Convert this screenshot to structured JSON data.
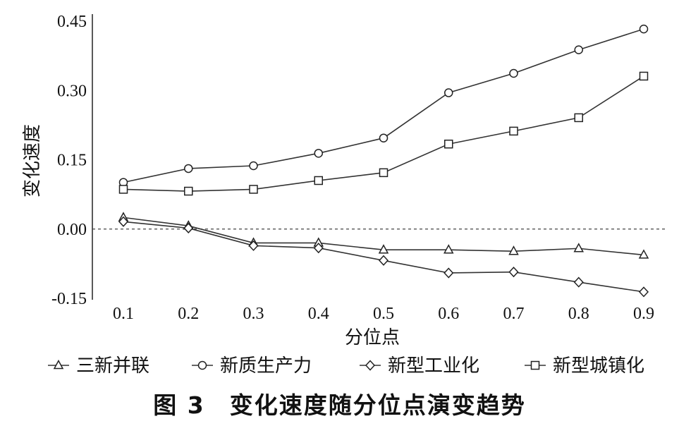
{
  "chart_data": {
    "type": "line",
    "x": [
      0.1,
      0.2,
      0.3,
      0.4,
      0.5,
      0.6,
      0.7,
      0.8,
      0.9
    ],
    "x_tick_labels": [
      "0.1",
      "0.2",
      "0.3",
      "0.4",
      "0.5",
      "0.6",
      "0.7",
      "0.8",
      "0.9"
    ],
    "y_tick_values": [
      -0.15,
      0.0,
      0.15,
      0.3,
      0.45
    ],
    "y_tick_labels": [
      "-0.15",
      "0.00",
      "0.15",
      "0.30",
      "0.45"
    ],
    "xlabel": "分位点",
    "ylabel": "变化速度",
    "ylim": [
      -0.15,
      0.45
    ],
    "xlim": [
      0.1,
      0.9
    ],
    "grid": false,
    "zero_line": "dashed",
    "legend_position": "bottom",
    "caption": "图 3　变化速度随分位点演变趋势",
    "series": [
      {
        "name": "三新并联",
        "marker": "triangle",
        "values": [
          0.025,
          0.007,
          -0.03,
          -0.03,
          -0.045,
          -0.045,
          -0.048,
          -0.042,
          -0.056
        ]
      },
      {
        "name": "新质生产力",
        "marker": "circle",
        "values": [
          0.101,
          0.131,
          0.137,
          0.164,
          0.197,
          0.295,
          0.337,
          0.388,
          0.433
        ]
      },
      {
        "name": "新型工业化",
        "marker": "diamond",
        "values": [
          0.016,
          0.002,
          -0.036,
          -0.041,
          -0.068,
          -0.095,
          -0.093,
          -0.115,
          -0.136
        ]
      },
      {
        "name": "新型城镇化",
        "marker": "square",
        "values": [
          0.086,
          0.082,
          0.086,
          0.105,
          0.122,
          0.184,
          0.212,
          0.241,
          0.331
        ]
      }
    ]
  }
}
